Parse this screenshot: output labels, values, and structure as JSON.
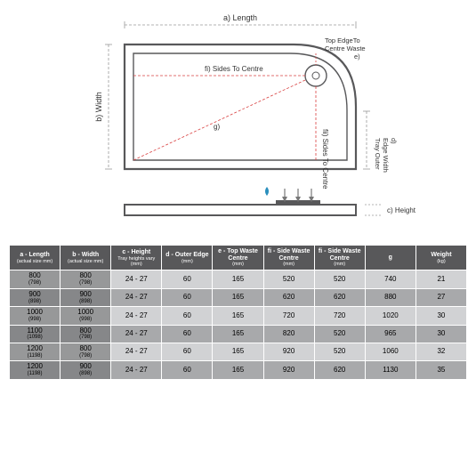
{
  "diagram": {
    "labels": {
      "length": "a) Length",
      "width": "b) Width",
      "height": "c) Height",
      "sides_to_centre_h": "fi) Sides To Centre",
      "sides_to_centre_v": "fii) Sides To Centre",
      "top_edge_waste": "Top EdgeTo Centre Waste e)",
      "outer_edge": "Tray Outer Edge Width d)",
      "g": "g)"
    },
    "colors": {
      "solid_line": "#58585a",
      "dashed_line": "#d94040",
      "dashed_dim": "#9a9a9a",
      "water": "#2a8fbd",
      "background": "#ffffff"
    },
    "line_widths": {
      "tray": 2.2,
      "dashed": 0.8
    }
  },
  "table": {
    "columns": [
      {
        "main": "a - Length",
        "sub": "(actual size mm)"
      },
      {
        "main": "b - Width",
        "sub": "(actual size mm)"
      },
      {
        "main": "c - Height",
        "sub": "Tray heights vary (mm)"
      },
      {
        "main": "d - Outer Edge",
        "sub": "(mm)"
      },
      {
        "main": "e - Top Waste Centre",
        "sub": "(mm)"
      },
      {
        "main": "fi - Side Waste Centre",
        "sub": "(mm)"
      },
      {
        "main": "fi - Side Waste Centre",
        "sub": "(mm)"
      },
      {
        "main": "g",
        "sub": ""
      },
      {
        "main": "Weight",
        "sub": "(kg)"
      }
    ],
    "rows": [
      {
        "a": "800",
        "a_sub": "(798)",
        "b": "800",
        "b_sub": "(798)",
        "c": "24 - 27",
        "d": "60",
        "e": "165",
        "fi1": "520",
        "fi2": "520",
        "g": "740",
        "w": "21"
      },
      {
        "a": "900",
        "a_sub": "(898)",
        "b": "900",
        "b_sub": "(898)",
        "c": "24 - 27",
        "d": "60",
        "e": "165",
        "fi1": "620",
        "fi2": "620",
        "g": "880",
        "w": "27"
      },
      {
        "a": "1000",
        "a_sub": "(998)",
        "b": "1000",
        "b_sub": "(998)",
        "c": "24 - 27",
        "d": "60",
        "e": "165",
        "fi1": "720",
        "fi2": "720",
        "g": "1020",
        "w": "30"
      },
      {
        "a": "1100",
        "a_sub": "(1098)",
        "b": "800",
        "b_sub": "(798)",
        "c": "24 - 27",
        "d": "60",
        "e": "165",
        "fi1": "820",
        "fi2": "520",
        "g": "965",
        "w": "30"
      },
      {
        "a": "1200",
        "a_sub": "(1198)",
        "b": "800",
        "b_sub": "(798)",
        "c": "24 - 27",
        "d": "60",
        "e": "165",
        "fi1": "920",
        "fi2": "520",
        "g": "1060",
        "w": "32"
      },
      {
        "a": "1200",
        "a_sub": "(1198)",
        "b": "900",
        "b_sub": "(898)",
        "c": "24 - 27",
        "d": "60",
        "e": "165",
        "fi1": "920",
        "fi2": "620",
        "g": "1130",
        "w": "35"
      }
    ],
    "header_bg": "#58585a",
    "header_color": "#ffffff",
    "row_light_bg": "#d1d2d4",
    "row_dark_bg": "#a8a9ab",
    "dim_cell_bg": "#979899"
  }
}
